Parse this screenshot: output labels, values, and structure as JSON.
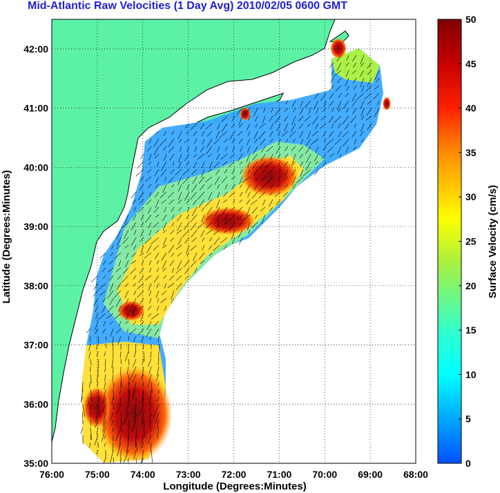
{
  "title": "Mid-Atlantic Raw Velocities (1 Day Avg) 2010/02/05 0600 GMT",
  "map": {
    "xlabel": "Longitude (Degrees:Minutes)",
    "ylabel": "Latitude (Degrees:Minutes)",
    "lon_ticks": [
      "76:00",
      "75:00",
      "74:00",
      "73:00",
      "72:00",
      "71:00",
      "70:00",
      "69:00",
      "68:00"
    ],
    "lat_ticks": [
      "42:00",
      "41:00",
      "40:00",
      "39:00",
      "38:00",
      "37:00",
      "36:00",
      "35:00"
    ],
    "lon_range": [
      -76,
      -68
    ],
    "lat_range": [
      35,
      42.5
    ],
    "grid": "dotted",
    "land_color": "#5cf2a6",
    "ocean_color": "#ffffff"
  },
  "colorbar": {
    "label": "Surface Velocity (cm/s)",
    "ticks": [
      "0",
      "5",
      "10",
      "15",
      "20",
      "25",
      "30",
      "35",
      "40",
      "45",
      "50"
    ],
    "range": [
      0,
      50
    ],
    "colormap": "jet"
  }
}
